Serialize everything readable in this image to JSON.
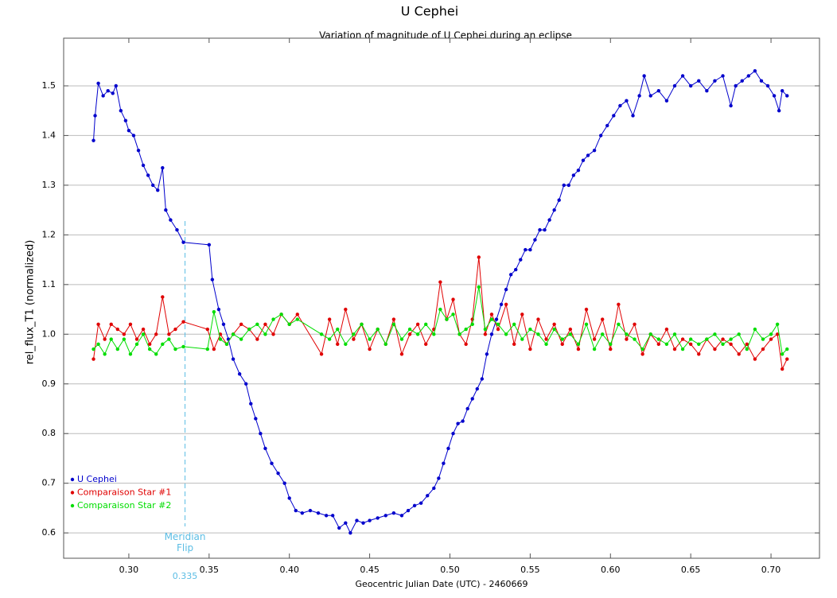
{
  "chart_data": {
    "type": "line",
    "title": "U Cephei",
    "subtitle": "Variation of magnitude of U Cephei during an eclipse",
    "x_label": "Geocentric Julian Date (UTC) - 2460669",
    "y_label": "rel_flux_T1 (normalized)",
    "xlim": [
      0.2594,
      0.7302
    ],
    "ylim": [
      0.549,
      1.596
    ],
    "xticks": [
      {
        "value": 0.3,
        "label": "0.30"
      },
      0.35,
      {
        "value": 0.4,
        "label": "0.40"
      },
      0.45,
      {
        "value": 0.5,
        "label": "0.50"
      },
      0.55,
      {
        "value": 0.6,
        "label": "0.60"
      },
      0.65,
      {
        "value": 0.7,
        "label": "0.70"
      }
    ],
    "yticks": [
      0.6,
      0.7,
      0.8,
      0.9,
      {
        "value": 1.0,
        "label": "1.0"
      },
      1.1,
      1.2,
      1.3,
      1.4,
      1.5
    ],
    "grid": true,
    "legend": "bottom left",
    "annotation": {
      "x": 0.335,
      "text": "Meridian Flip",
      "color": "#5bbde4"
    },
    "series": [
      {
        "name": "U Cephei",
        "color": "#0000cc",
        "x": [
          0.278,
          0.279,
          0.281,
          0.284,
          0.287,
          0.29,
          0.292,
          0.295,
          0.298,
          0.3,
          0.303,
          0.306,
          0.309,
          0.312,
          0.315,
          0.318,
          0.321,
          0.323,
          0.326,
          0.33,
          0.334,
          0.35,
          0.352,
          0.356,
          0.359,
          0.362,
          0.365,
          0.369,
          0.373,
          0.376,
          0.379,
          0.382,
          0.385,
          0.389,
          0.393,
          0.397,
          0.4,
          0.404,
          0.408,
          0.413,
          0.418,
          0.423,
          0.427,
          0.431,
          0.435,
          0.438,
          0.442,
          0.446,
          0.45,
          0.455,
          0.46,
          0.465,
          0.47,
          0.474,
          0.478,
          0.482,
          0.486,
          0.49,
          0.493,
          0.496,
          0.499,
          0.502,
          0.505,
          0.508,
          0.511,
          0.514,
          0.517,
          0.52,
          0.523,
          0.526,
          0.529,
          0.532,
          0.535,
          0.538,
          0.541,
          0.544,
          0.547,
          0.55,
          0.553,
          0.556,
          0.559,
          0.562,
          0.565,
          0.568,
          0.571,
          0.574,
          0.577,
          0.58,
          0.583,
          0.586,
          0.59,
          0.594,
          0.598,
          0.602,
          0.606,
          0.61,
          0.614,
          0.618,
          0.621,
          0.625,
          0.63,
          0.635,
          0.64,
          0.645,
          0.65,
          0.655,
          0.66,
          0.665,
          0.67,
          0.675,
          0.678,
          0.682,
          0.686,
          0.69,
          0.694,
          0.698,
          0.702,
          0.705,
          0.707,
          0.71
        ],
        "values": [
          1.39,
          1.44,
          1.505,
          1.48,
          1.49,
          1.485,
          1.5,
          1.45,
          1.43,
          1.41,
          1.4,
          1.37,
          1.34,
          1.32,
          1.3,
          1.29,
          1.335,
          1.25,
          1.23,
          1.21,
          1.185,
          1.18,
          1.11,
          1.05,
          1.02,
          0.99,
          0.95,
          0.92,
          0.9,
          0.86,
          0.83,
          0.8,
          0.77,
          0.74,
          0.72,
          0.7,
          0.67,
          0.645,
          0.64,
          0.645,
          0.64,
          0.635,
          0.635,
          0.61,
          0.62,
          0.6,
          0.625,
          0.62,
          0.625,
          0.63,
          0.635,
          0.64,
          0.635,
          0.645,
          0.655,
          0.66,
          0.675,
          0.69,
          0.71,
          0.74,
          0.77,
          0.8,
          0.82,
          0.825,
          0.85,
          0.87,
          0.89,
          0.91,
          0.96,
          1.0,
          1.03,
          1.06,
          1.09,
          1.12,
          1.13,
          1.15,
          1.17,
          1.17,
          1.19,
          1.21,
          1.21,
          1.23,
          1.25,
          1.27,
          1.3,
          1.3,
          1.32,
          1.33,
          1.35,
          1.36,
          1.37,
          1.4,
          1.42,
          1.44,
          1.46,
          1.47,
          1.44,
          1.48,
          1.52,
          1.48,
          1.49,
          1.47,
          1.5,
          1.52,
          1.5,
          1.51,
          1.49,
          1.51,
          1.52,
          1.46,
          1.5,
          1.51,
          1.52,
          1.53,
          1.51,
          1.5,
          1.48,
          1.45,
          1.49,
          1.48
        ]
      },
      {
        "name": "Comparaison Star #1",
        "color": "#e00000",
        "x": [
          0.278,
          0.281,
          0.285,
          0.289,
          0.293,
          0.297,
          0.301,
          0.305,
          0.309,
          0.313,
          0.317,
          0.321,
          0.325,
          0.329,
          0.334,
          0.349,
          0.353,
          0.357,
          0.361,
          0.365,
          0.37,
          0.375,
          0.38,
          0.385,
          0.39,
          0.395,
          0.4,
          0.405,
          0.42,
          0.425,
          0.43,
          0.435,
          0.44,
          0.445,
          0.45,
          0.455,
          0.46,
          0.465,
          0.47,
          0.475,
          0.48,
          0.485,
          0.49,
          0.494,
          0.498,
          0.502,
          0.506,
          0.51,
          0.514,
          0.518,
          0.522,
          0.526,
          0.53,
          0.535,
          0.54,
          0.545,
          0.55,
          0.555,
          0.56,
          0.565,
          0.57,
          0.575,
          0.58,
          0.585,
          0.59,
          0.595,
          0.6,
          0.605,
          0.61,
          0.615,
          0.62,
          0.625,
          0.63,
          0.635,
          0.64,
          0.645,
          0.65,
          0.655,
          0.66,
          0.665,
          0.67,
          0.675,
          0.68,
          0.685,
          0.69,
          0.695,
          0.7,
          0.704,
          0.707,
          0.71
        ],
        "values": [
          0.95,
          1.02,
          0.99,
          1.02,
          1.01,
          1.0,
          1.02,
          0.99,
          1.01,
          0.98,
          1.0,
          1.075,
          1.0,
          1.01,
          1.025,
          1.01,
          0.97,
          1.0,
          0.98,
          1.0,
          1.02,
          1.01,
          0.99,
          1.02,
          1.0,
          1.04,
          1.02,
          1.04,
          0.96,
          1.03,
          0.98,
          1.05,
          0.99,
          1.02,
          0.97,
          1.01,
          0.98,
          1.03,
          0.96,
          1.0,
          1.02,
          0.98,
          1.01,
          1.105,
          1.03,
          1.07,
          1.0,
          0.98,
          1.03,
          1.155,
          1.0,
          1.04,
          1.01,
          1.06,
          0.98,
          1.04,
          0.97,
          1.03,
          0.99,
          1.02,
          0.98,
          1.01,
          0.97,
          1.05,
          0.99,
          1.03,
          0.97,
          1.06,
          0.99,
          1.02,
          0.96,
          1.0,
          0.98,
          1.01,
          0.97,
          0.99,
          0.98,
          0.96,
          0.99,
          0.97,
          0.99,
          0.98,
          0.96,
          0.98,
          0.95,
          0.97,
          0.99,
          1.0,
          0.93,
          0.95
        ]
      },
      {
        "name": "Comparaison Star #2",
        "color": "#00dd00",
        "x": [
          0.278,
          0.281,
          0.285,
          0.289,
          0.293,
          0.297,
          0.301,
          0.305,
          0.309,
          0.313,
          0.317,
          0.321,
          0.325,
          0.329,
          0.334,
          0.349,
          0.353,
          0.357,
          0.361,
          0.365,
          0.37,
          0.375,
          0.38,
          0.385,
          0.39,
          0.395,
          0.4,
          0.405,
          0.42,
          0.425,
          0.43,
          0.435,
          0.44,
          0.445,
          0.45,
          0.455,
          0.46,
          0.465,
          0.47,
          0.475,
          0.48,
          0.485,
          0.49,
          0.494,
          0.498,
          0.502,
          0.506,
          0.51,
          0.514,
          0.518,
          0.522,
          0.526,
          0.53,
          0.535,
          0.54,
          0.545,
          0.55,
          0.555,
          0.56,
          0.565,
          0.57,
          0.575,
          0.58,
          0.585,
          0.59,
          0.595,
          0.6,
          0.605,
          0.61,
          0.615,
          0.62,
          0.625,
          0.63,
          0.635,
          0.64,
          0.645,
          0.65,
          0.655,
          0.66,
          0.665,
          0.67,
          0.675,
          0.68,
          0.685,
          0.69,
          0.695,
          0.7,
          0.704,
          0.707,
          0.71
        ],
        "values": [
          0.97,
          0.98,
          0.96,
          0.99,
          0.97,
          0.99,
          0.96,
          0.98,
          1.0,
          0.97,
          0.96,
          0.98,
          0.99,
          0.97,
          0.975,
          0.97,
          1.045,
          0.99,
          0.98,
          1.0,
          0.99,
          1.01,
          1.02,
          1.0,
          1.03,
          1.04,
          1.02,
          1.03,
          1.0,
          0.99,
          1.01,
          0.98,
          1.0,
          1.02,
          0.99,
          1.01,
          0.98,
          1.02,
          0.99,
          1.01,
          1.0,
          1.02,
          1.0,
          1.05,
          1.03,
          1.04,
          1.0,
          1.01,
          1.02,
          1.095,
          1.01,
          1.03,
          1.02,
          1.0,
          1.02,
          0.99,
          1.01,
          1.0,
          0.98,
          1.01,
          0.99,
          1.0,
          0.98,
          1.02,
          0.97,
          1.0,
          0.98,
          1.02,
          1.0,
          0.99,
          0.97,
          1.0,
          0.99,
          0.98,
          1.0,
          0.97,
          0.99,
          0.98,
          0.99,
          1.0,
          0.98,
          0.99,
          1.0,
          0.97,
          1.01,
          0.99,
          1.0,
          1.02,
          0.96,
          0.97
        ]
      }
    ]
  }
}
